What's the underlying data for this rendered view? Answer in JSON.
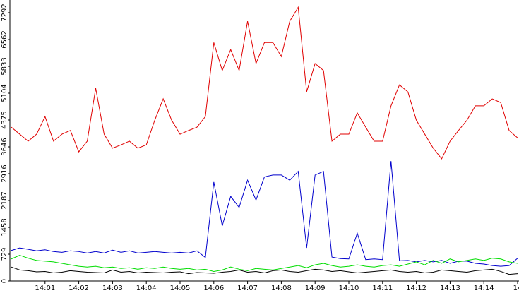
{
  "chart_data": {
    "type": "line",
    "x": [
      0,
      0.25,
      0.5,
      0.75,
      1,
      1.25,
      1.5,
      1.75,
      2,
      2.25,
      2.5,
      2.75,
      3,
      3.25,
      3.5,
      3.75,
      4,
      4.25,
      4.5,
      4.75,
      5,
      5.25,
      5.5,
      5.75,
      6,
      6.25,
      6.5,
      6.75,
      7,
      7.25,
      7.5,
      7.75,
      8,
      8.25,
      8.5,
      8.75,
      9,
      9.25,
      9.5,
      9.75,
      10,
      10.25,
      10.5,
      10.75,
      11,
      11.25,
      11.5,
      11.75,
      12,
      12.25,
      12.5,
      12.75,
      13,
      13.25,
      13.5,
      13.75,
      14,
      14.25,
      14.5,
      14.75,
      15
    ],
    "series": [
      {
        "color": "#e00000",
        "values": [
          4180,
          3990,
          3800,
          3990,
          4470,
          3800,
          3990,
          4090,
          3510,
          3800,
          5240,
          3990,
          3610,
          3700,
          3800,
          3610,
          3700,
          4370,
          4950,
          4370,
          3990,
          4090,
          4180,
          4470,
          6480,
          5720,
          6290,
          5720,
          7060,
          5910,
          6480,
          6480,
          6100,
          7060,
          7440,
          5140,
          5910,
          5720,
          3800,
          3990,
          3990,
          4570,
          4180,
          3800,
          3800,
          4760,
          5330,
          5140,
          4370,
          3990,
          3610,
          3320,
          3800,
          4090,
          4370,
          4760,
          4760,
          4950,
          4850,
          4090,
          3890
        ]
      },
      {
        "color": "#0000cc",
        "values": [
          830,
          900,
          860,
          820,
          850,
          800,
          780,
          820,
          800,
          760,
          800,
          760,
          840,
          780,
          820,
          760,
          780,
          800,
          780,
          760,
          780,
          760,
          820,
          640,
          2690,
          1500,
          2300,
          2000,
          2740,
          2200,
          2830,
          2880,
          2880,
          2740,
          2980,
          900,
          2880,
          2980,
          650,
          610,
          600,
          1300,
          580,
          600,
          580,
          3260,
          550,
          560,
          520,
          560,
          520,
          560,
          480,
          540,
          540,
          480,
          460,
          420,
          400,
          420,
          620
        ]
      },
      {
        "color": "#00dd00",
        "values": [
          600,
          700,
          620,
          560,
          540,
          520,
          480,
          440,
          400,
          380,
          400,
          360,
          380,
          340,
          360,
          320,
          360,
          340,
          380,
          340,
          320,
          340,
          300,
          320,
          260,
          300,
          380,
          320,
          280,
          340,
          320,
          300,
          340,
          380,
          420,
          360,
          440,
          480,
          420,
          380,
          400,
          440,
          400,
          380,
          420,
          440,
          400,
          460,
          520,
          440,
          560,
          480,
          600,
          520,
          560,
          600,
          560,
          620,
          600,
          520,
          480
        ]
      },
      {
        "color": "#000000",
        "values": [
          380,
          300,
          280,
          250,
          260,
          220,
          240,
          280,
          260,
          240,
          230,
          220,
          300,
          240,
          260,
          220,
          240,
          230,
          220,
          240,
          250,
          200,
          230,
          220,
          210,
          240,
          260,
          300,
          240,
          260,
          220,
          280,
          300,
          260,
          240,
          280,
          320,
          300,
          260,
          280,
          250,
          220,
          240,
          260,
          280,
          300,
          260,
          240,
          260,
          220,
          240,
          300,
          280,
          260,
          240,
          280,
          300,
          320,
          260,
          180,
          200
        ]
      }
    ],
    "xlim": [
      0,
      15
    ],
    "xticks": [
      {
        "value": 1,
        "label": "14:01"
      },
      {
        "value": 2,
        "label": "14:02"
      },
      {
        "value": 3,
        "label": "14:03"
      },
      {
        "value": 4,
        "label": "14:04"
      },
      {
        "value": 5,
        "label": "14:05"
      },
      {
        "value": 6,
        "label": "14:06"
      },
      {
        "value": 7,
        "label": "14:07"
      },
      {
        "value": 8,
        "label": "14:08"
      },
      {
        "value": 9,
        "label": "14:09"
      },
      {
        "value": 10,
        "label": "14:10"
      },
      {
        "value": 11,
        "label": "14:11"
      },
      {
        "value": 12,
        "label": "14:12"
      },
      {
        "value": 13,
        "label": "14:13"
      },
      {
        "value": 14,
        "label": "14:14"
      },
      {
        "value": 15,
        "label": "14"
      }
    ],
    "ylim": [
      0,
      7637
    ],
    "yticks": [
      0,
      729,
      1458,
      2187,
      2916,
      3646,
      4375,
      5104,
      5833,
      6562,
      7292
    ],
    "grid": false
  }
}
